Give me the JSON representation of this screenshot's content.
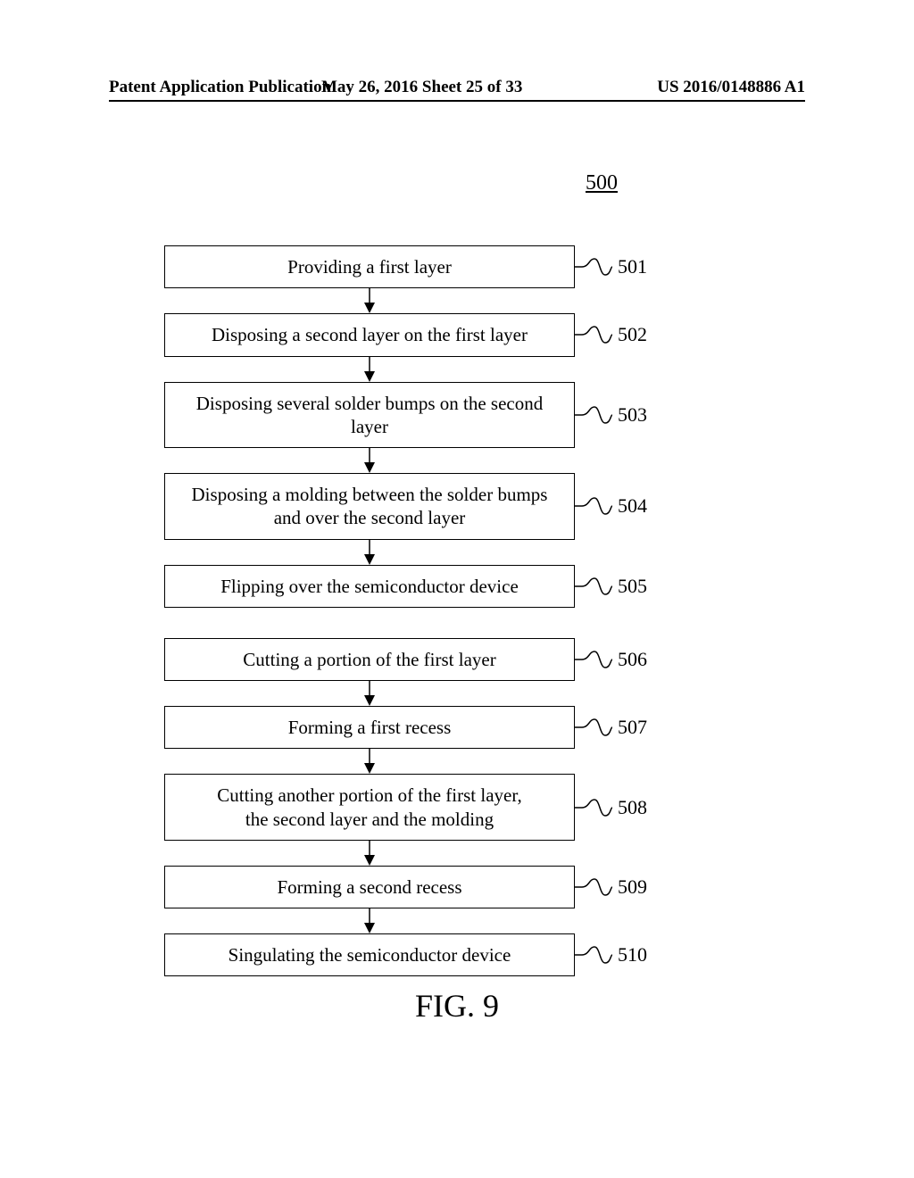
{
  "header": {
    "left": "Patent Application Publication",
    "center": "May 26, 2016  Sheet 25 of 33",
    "right": "US 2016/0148886 A1"
  },
  "figure": {
    "refNumber": "500",
    "caption": "FIG. 9"
  },
  "flowchart": {
    "boxWidth": 460,
    "boxBorderColor": "#000000",
    "boxBorderWidth": 1.5,
    "backgroundColor": "#ffffff",
    "textColor": "#000000",
    "stepFontSize": 21,
    "refFontSize": 22,
    "arrowHeight": 28,
    "steps": [
      {
        "id": "501",
        "text": "Providing a first layer",
        "arrowAfter": true,
        "multiline": false
      },
      {
        "id": "502",
        "text": "Disposing a second layer on the first layer",
        "arrowAfter": true,
        "multiline": false
      },
      {
        "id": "503",
        "text": "Disposing several solder bumps on the second layer",
        "arrowAfter": true,
        "multiline": false
      },
      {
        "id": "504",
        "text": "Disposing a molding between the solder bumps\nand over the second layer",
        "arrowAfter": true,
        "multiline": true
      },
      {
        "id": "505",
        "text": "Flipping over the semiconductor device",
        "arrowAfter": false,
        "gapAfter": true,
        "multiline": false
      },
      {
        "id": "506",
        "text": "Cutting a portion of the first layer",
        "arrowAfter": true,
        "multiline": false
      },
      {
        "id": "507",
        "text": "Forming a first recess",
        "arrowAfter": true,
        "multiline": false
      },
      {
        "id": "508",
        "text": "Cutting another portion of the first layer,\nthe second layer and the molding",
        "arrowAfter": true,
        "multiline": true
      },
      {
        "id": "509",
        "text": "Forming a second recess",
        "arrowAfter": true,
        "multiline": false
      },
      {
        "id": "510",
        "text": "Singulating the semiconductor device",
        "arrowAfter": false,
        "multiline": false
      }
    ]
  }
}
